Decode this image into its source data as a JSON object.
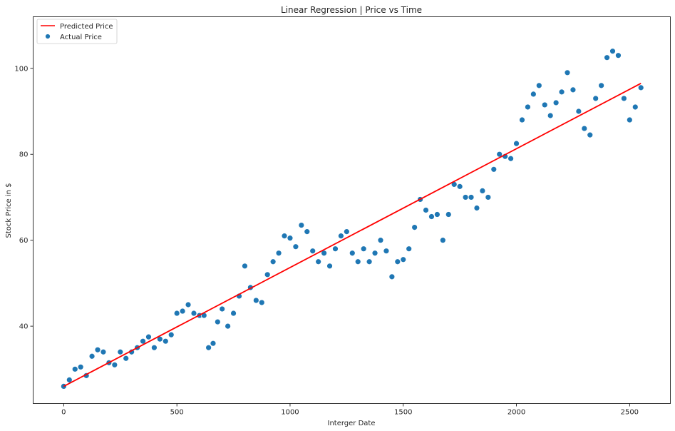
{
  "chart_data": {
    "type": "scatter",
    "title": "Linear Regression | Price vs Time",
    "xlabel": "Interger Date",
    "ylabel": "Stock Price in $",
    "xlim": [
      -135,
      2680
    ],
    "ylim": [
      22,
      112
    ],
    "x_ticks": [
      0,
      500,
      1000,
      1500,
      2000,
      2500
    ],
    "y_ticks": [
      40,
      60,
      80,
      100
    ],
    "grid": false,
    "legend_position": "top-left",
    "series": [
      {
        "name": "Predicted Price",
        "kind": "line",
        "color": "#ff0000",
        "x": [
          0,
          2550
        ],
        "y": [
          26.0,
          96.5
        ]
      },
      {
        "name": "Actual Price",
        "kind": "scatter",
        "color": "#1f77b4",
        "x": [
          0,
          25,
          50,
          75,
          100,
          125,
          150,
          175,
          200,
          225,
          250,
          275,
          300,
          325,
          350,
          375,
          400,
          425,
          450,
          475,
          500,
          525,
          550,
          575,
          600,
          620,
          640,
          660,
          680,
          700,
          725,
          750,
          775,
          800,
          825,
          850,
          875,
          900,
          925,
          950,
          975,
          1000,
          1025,
          1050,
          1075,
          1100,
          1125,
          1150,
          1175,
          1200,
          1225,
          1250,
          1275,
          1300,
          1325,
          1350,
          1375,
          1400,
          1425,
          1450,
          1475,
          1500,
          1525,
          1550,
          1575,
          1600,
          1625,
          1650,
          1675,
          1700,
          1725,
          1750,
          1775,
          1800,
          1825,
          1850,
          1875,
          1900,
          1925,
          1950,
          1975,
          2000,
          2025,
          2050,
          2075,
          2100,
          2125,
          2150,
          2175,
          2200,
          2225,
          2250,
          2275,
          2300,
          2325,
          2350,
          2375,
          2400,
          2425,
          2450,
          2475,
          2500,
          2525,
          2550
        ],
        "y": [
          26.0,
          27.5,
          30.0,
          30.5,
          28.5,
          33.0,
          34.5,
          34.0,
          31.5,
          31.0,
          34.0,
          32.5,
          34.0,
          35.0,
          36.5,
          37.5,
          35.0,
          37.0,
          36.5,
          38.0,
          43.0,
          43.5,
          45.0,
          43.0,
          42.5,
          42.5,
          35.0,
          36.0,
          41.0,
          44.0,
          40.0,
          43.0,
          47.0,
          54.0,
          49.0,
          46.0,
          45.5,
          52.0,
          55.0,
          57.0,
          61.0,
          60.5,
          58.5,
          63.5,
          62.0,
          57.5,
          55.0,
          57.0,
          54.0,
          58.0,
          61.0,
          62.0,
          57.0,
          55.0,
          58.0,
          55.0,
          57.0,
          60.0,
          57.5,
          51.5,
          55.0,
          55.5,
          58.0,
          63.0,
          69.5,
          67.0,
          65.5,
          66.0,
          60.0,
          66.0,
          73.0,
          72.5,
          70.0,
          70.0,
          67.5,
          71.5,
          70.0,
          76.5,
          80.0,
          79.5,
          79.0,
          82.5,
          88.0,
          91.0,
          94.0,
          96.0,
          91.5,
          89.0,
          92.0,
          94.5,
          99.0,
          95.0,
          90.0,
          86.0,
          84.5,
          93.0,
          96.0,
          102.5,
          104.0,
          103.0,
          93.0,
          88.0,
          91.0,
          95.5
        ]
      }
    ]
  }
}
